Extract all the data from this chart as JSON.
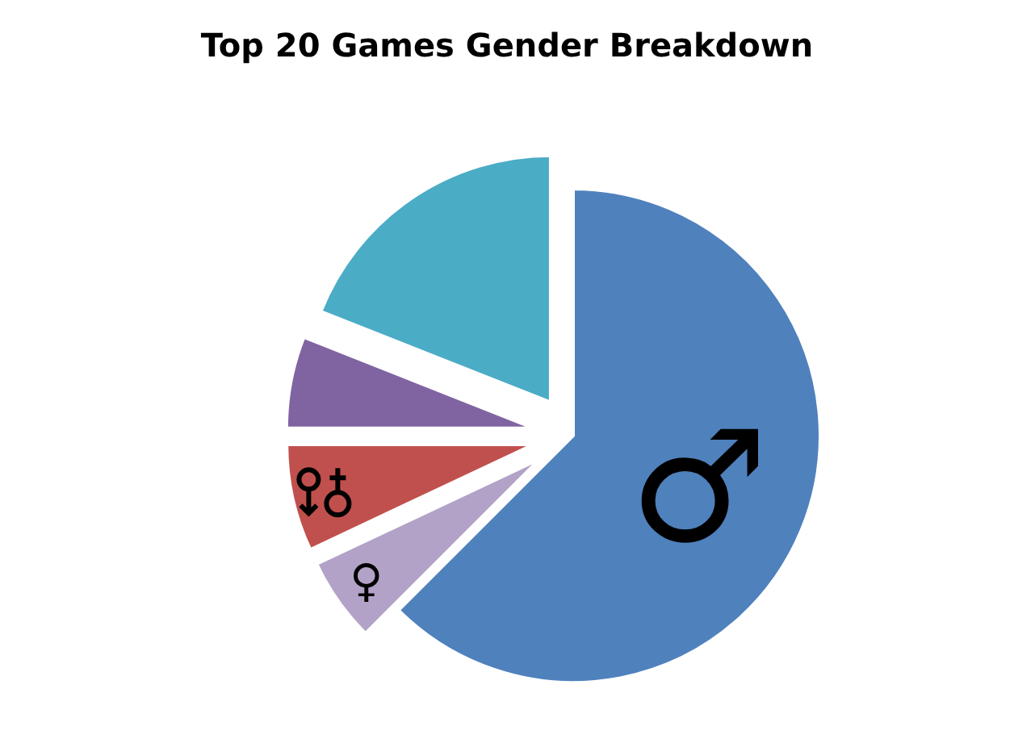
{
  "chart_data": {
    "type": "pie",
    "title": "Top 20 Games Gender Breakdown",
    "categories": [
      "♂",
      "♀",
      null,
      null,
      null
    ],
    "values": [
      62.5,
      5.5,
      7,
      6,
      19
    ],
    "colors": [
      "#4f81bd",
      "#b3a2c7",
      "#c0504d",
      "#8064a2",
      "#4bacc6"
    ],
    "legend": false
  }
}
